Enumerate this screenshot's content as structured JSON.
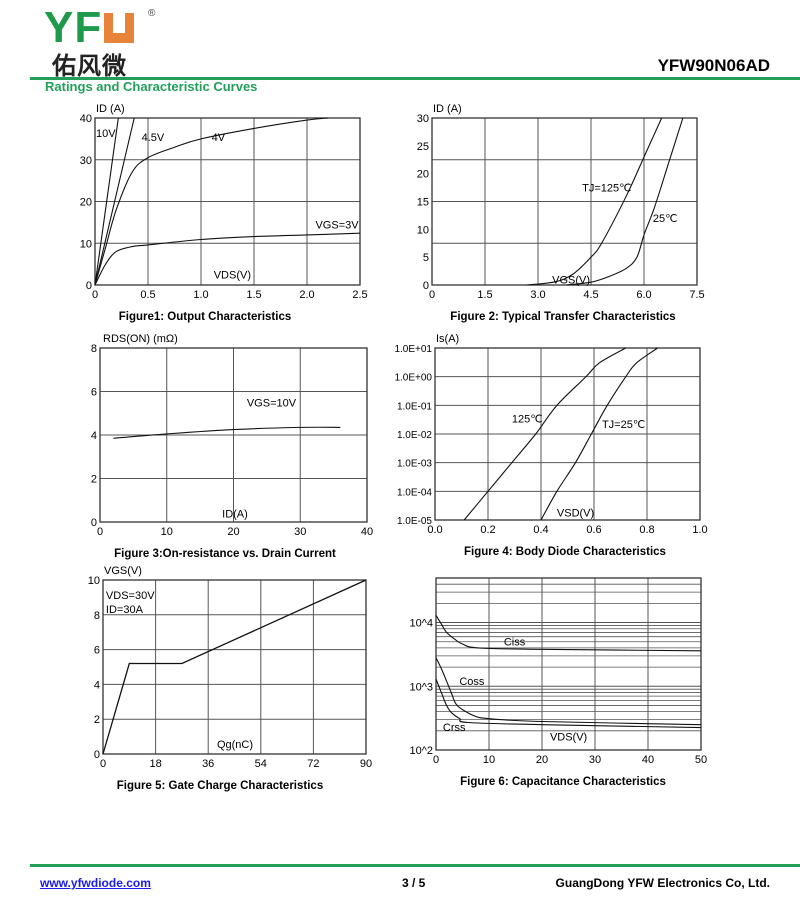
{
  "header": {
    "logo_text": "YFW",
    "logo_cn": "佑风微",
    "logo_registered": "®",
    "part_number": "YFW90N06AD",
    "section_title": "Ratings and Characteristic Curves",
    "brand_green": "#22a05a",
    "brand_orange": "#e8843a"
  },
  "footer": {
    "website": "www.yfwdiode.com",
    "page": "3 / 5",
    "company": "GuangDong YFW Electronics Co, Ltd."
  },
  "chart_data": [
    {
      "type": "line",
      "title": "Figure1: Output Characteristics",
      "ylabel": "ID (A)",
      "xlabel": "VDS(V)",
      "xlim": [
        0,
        2.5
      ],
      "ylim": [
        0,
        40
      ],
      "xticks": [
        0,
        0.5,
        1.0,
        1.5,
        2.0,
        2.5
      ],
      "xticklabels": [
        "0",
        "0.5",
        "1.0",
        "1.5",
        "2.0",
        "2.5"
      ],
      "yticks": [
        0,
        10,
        20,
        30,
        40
      ],
      "yticklabels": [
        "0",
        "10",
        "20",
        "30",
        "40"
      ],
      "grid": true,
      "series": [
        {
          "name": "10V",
          "points": [
            [
              0,
              0
            ],
            [
              0.22,
              40
            ]
          ]
        },
        {
          "name": "4.5V",
          "points": [
            [
              0,
              0
            ],
            [
              0.37,
              40
            ]
          ]
        },
        {
          "name": "4V",
          "points": [
            [
              0,
              0
            ],
            [
              0.1,
              9
            ],
            [
              0.2,
              18
            ],
            [
              0.35,
              27
            ],
            [
              0.5,
              30.5
            ],
            [
              0.75,
              33
            ],
            [
              1.0,
              35
            ],
            [
              1.5,
              37.5
            ],
            [
              2.0,
              39.5
            ],
            [
              2.2,
              40
            ]
          ]
        },
        {
          "name": "VGS=3V",
          "points": [
            [
              0,
              0
            ],
            [
              0.1,
              5
            ],
            [
              0.2,
              8
            ],
            [
              0.35,
              9.2
            ],
            [
              0.5,
              9.6
            ],
            [
              1.0,
              10.9
            ],
            [
              1.5,
              11.6
            ],
            [
              2.0,
              12
            ],
            [
              2.5,
              12.4
            ]
          ]
        }
      ],
      "annotations": [
        {
          "text": "10V",
          "x": 0.01,
          "y": 35.5
        },
        {
          "text": "4.5V",
          "x": 0.44,
          "y": 34.5
        },
        {
          "text": "4V",
          "x": 1.1,
          "y": 34.5
        },
        {
          "text": "VGS=3V",
          "x": 2.08,
          "y": 13.5
        },
        {
          "text": "VDS(V)",
          "x": 1.12,
          "y": 1.5
        }
      ]
    },
    {
      "type": "line",
      "title": "Figure 2: Typical Transfer Characteristics",
      "ylabel": "ID (A)",
      "xlabel": "VGS(V)",
      "xlim": [
        0,
        7.5
      ],
      "ylim": [
        0,
        30
      ],
      "xticks": [
        0,
        1.5,
        3.0,
        4.5,
        6.0,
        7.5
      ],
      "xticklabels": [
        "0",
        "1.5",
        "3.0",
        "4.5",
        "6.0",
        "7.5"
      ],
      "yticks": [
        0,
        5,
        10,
        15,
        20,
        25,
        30
      ],
      "yticklabels": [
        "0",
        "5",
        "10",
        "15",
        "20",
        "25",
        "30"
      ],
      "ygrid": [
        7.5,
        15,
        22.5
      ],
      "grid": true,
      "series": [
        {
          "name": "TJ=125℃",
          "points": [
            [
              2.7,
              0
            ],
            [
              3.5,
              0.6
            ],
            [
              4.0,
              2
            ],
            [
              4.5,
              5
            ],
            [
              4.8,
              7.5
            ],
            [
              5.5,
              16
            ],
            [
              6.0,
              23
            ],
            [
              6.5,
              30
            ]
          ]
        },
        {
          "name": "25℃",
          "points": [
            [
              3.8,
              0
            ],
            [
              4.5,
              0.5
            ],
            [
              5.0,
              1.5
            ],
            [
              5.5,
              3
            ],
            [
              5.8,
              5
            ],
            [
              6.0,
              9
            ],
            [
              6.3,
              14
            ],
            [
              6.7,
              22
            ],
            [
              7.1,
              30
            ]
          ]
        }
      ],
      "annotations": [
        {
          "text": "TJ=125℃",
          "x": 4.25,
          "y": 16.8
        },
        {
          "text": "25℃",
          "x": 6.25,
          "y": 11.3
        },
        {
          "text": "VGS(V)",
          "x": 3.4,
          "y": 0.3
        }
      ]
    },
    {
      "type": "line",
      "title": "Figure 3:On-resistance vs. Drain Current",
      "ylabel": "RDS(ON) (mΩ)",
      "xlabel": "ID(A)",
      "xlim": [
        0,
        40
      ],
      "ylim": [
        0,
        8
      ],
      "xticks": [
        0,
        10,
        20,
        30,
        40
      ],
      "xticklabels": [
        "0",
        "10",
        "20",
        "30",
        "40"
      ],
      "yticks": [
        0,
        2,
        4,
        6,
        8
      ],
      "yticklabels": [
        "0",
        "2",
        "4",
        "6",
        "8"
      ],
      "grid": true,
      "series": [
        {
          "name": "VGS=10V",
          "points": [
            [
              2,
              3.85
            ],
            [
              10,
              4.05
            ],
            [
              20,
              4.25
            ],
            [
              30,
              4.35
            ],
            [
              36,
              4.35
            ]
          ]
        }
      ],
      "annotations": [
        {
          "text": "VGS=10V",
          "x": 22,
          "y": 5.3
        },
        {
          "text": "ID(A)",
          "x": 18.3,
          "y": 0.2
        }
      ]
    },
    {
      "type": "line",
      "title": "Figure 4: Body Diode Characteristics",
      "ylabel": "Is(A)",
      "xlabel": "VSD(V)",
      "xlim": [
        0,
        1.0
      ],
      "ylim": [
        1e-05,
        10
      ],
      "yscale": "log",
      "xticks": [
        0,
        0.2,
        0.4,
        0.6,
        0.8,
        1.0
      ],
      "xticklabels": [
        "0.0",
        "0.2",
        "0.4",
        "0.6",
        "0.8",
        "1.0"
      ],
      "yticks": [
        1e-05,
        0.0001,
        0.001,
        0.01,
        0.1,
        1,
        10
      ],
      "yticklabels": [
        "1.0E-05",
        "1.0E-04",
        "1.0E-03",
        "1.0E-02",
        "1.0E-01",
        "1.0E+00",
        "1.0E+01"
      ],
      "grid": true,
      "series": [
        {
          "name": "125℃",
          "points": [
            [
              0.11,
              1e-05
            ],
            [
              0.2,
              0.0001
            ],
            [
              0.29,
              0.001
            ],
            [
              0.38,
              0.01
            ],
            [
              0.46,
              0.1
            ],
            [
              0.57,
              1
            ],
            [
              0.62,
              3
            ],
            [
              0.72,
              10
            ]
          ]
        },
        {
          "name": "TJ=25℃",
          "points": [
            [
              0.4,
              1e-05
            ],
            [
              0.46,
              0.0001
            ],
            [
              0.53,
              0.001
            ],
            [
              0.59,
              0.01
            ],
            [
              0.65,
              0.1
            ],
            [
              0.72,
              1
            ],
            [
              0.76,
              3
            ],
            [
              0.84,
              10
            ]
          ]
        }
      ],
      "annotations": [
        {
          "text": "125℃",
          "x": 0.29,
          "y": 0.025
        },
        {
          "text": "TJ=25℃",
          "x": 0.63,
          "y": 0.016
        },
        {
          "text": "VSD(V)",
          "x": 0.46,
          "y": 1.3e-05
        }
      ]
    },
    {
      "type": "line",
      "title": "Figure 5: Gate Charge Characteristics",
      "ylabel": "VGS(V)",
      "xlabel": "Qg(nC)",
      "xlim": [
        0,
        90
      ],
      "ylim": [
        0,
        10
      ],
      "xticks": [
        0,
        18,
        36,
        54,
        72,
        90
      ],
      "xticklabels": [
        "0",
        "18",
        "36",
        "54",
        "72",
        "90"
      ],
      "yticks": [
        0,
        2,
        4,
        6,
        8,
        10
      ],
      "yticklabels": [
        "0",
        "2",
        "4",
        "6",
        "8",
        "10"
      ],
      "grid": true,
      "series": [
        {
          "points": [
            [
              0,
              0
            ],
            [
              9,
              5.2
            ],
            [
              27,
              5.2
            ],
            [
              90,
              10
            ]
          ]
        }
      ],
      "annotations": [
        {
          "text": "VDS=30V",
          "x": 1,
          "y": 8.9
        },
        {
          "text": "ID=30A",
          "x": 1,
          "y": 8.1
        },
        {
          "text": "Qg(nC)",
          "x": 39,
          "y": 0.35
        }
      ]
    },
    {
      "type": "line",
      "title": "Figure 6: Capacitance Characteristics",
      "xlabel": "VDS(V)",
      "xlim": [
        0,
        50
      ],
      "ylim": [
        100,
        50000
      ],
      "yscale": "log",
      "xticks": [
        0,
        10,
        20,
        30,
        40,
        50
      ],
      "xticklabels": [
        "0",
        "10",
        "20",
        "30",
        "40",
        "50"
      ],
      "yticks": [
        100,
        1000,
        10000
      ],
      "yticklabels": [
        "10^2",
        "10^3",
        "10^4"
      ],
      "grid": true,
      "minor_grid": true,
      "series": [
        {
          "name": "Ciss",
          "points": [
            [
              0,
              13000
            ],
            [
              1,
              9500
            ],
            [
              2,
              7000
            ],
            [
              3.5,
              5500
            ],
            [
              5,
              4600
            ],
            [
              8,
              4000
            ],
            [
              20,
              3800
            ],
            [
              50,
              3600
            ]
          ]
        },
        {
          "name": "Coss",
          "points": [
            [
              0,
              2800
            ],
            [
              1,
              1900
            ],
            [
              2,
              1200
            ],
            [
              3,
              750
            ],
            [
              4,
              500
            ],
            [
              7,
              350
            ],
            [
              10,
              310
            ],
            [
              20,
              280
            ],
            [
              50,
              250
            ]
          ]
        },
        {
          "name": "Crss",
          "points": [
            [
              0,
              1300
            ],
            [
              1,
              800
            ],
            [
              2,
              500
            ],
            [
              3,
              380
            ],
            [
              4.5,
              310
            ],
            [
              6,
              270
            ],
            [
              20,
              250
            ],
            [
              50,
              225
            ]
          ]
        }
      ],
      "annotations": [
        {
          "text": "Ciss",
          "x": 12.8,
          "y": 4400
        },
        {
          "text": "Coss",
          "x": 4.4,
          "y": 1050
        },
        {
          "text": "Crss",
          "x": 1.3,
          "y": 200
        },
        {
          "text": "VDS(V)",
          "x": 21.5,
          "y": 140
        }
      ]
    }
  ]
}
